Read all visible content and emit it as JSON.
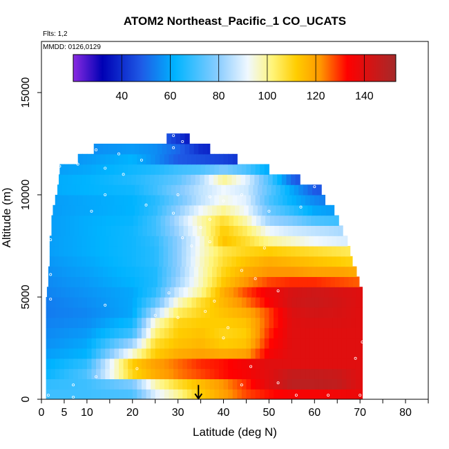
{
  "chart_data": {
    "type": "heatmap",
    "title": "ATOM2 Northeast_Pacific_1 CO_UCATS",
    "subtitle_flights": "Flts: 1,2",
    "subtitle_dates": "MMDD: 0126,0129",
    "xlabel": "Latitude (deg N)",
    "ylabel": "Altitude (m)",
    "xlim": [
      0,
      85
    ],
    "ylim": [
      0,
      17500
    ],
    "x_ticks": [
      0,
      5,
      10,
      20,
      30,
      40,
      50,
      60,
      70,
      80
    ],
    "x_tick_labels": [
      "0",
      "5",
      "10",
      "20",
      "30",
      "40",
      "50",
      "60",
      "70",
      "80"
    ],
    "y_ticks": [
      0,
      5000,
      10000,
      15000
    ],
    "y_tick_labels": [
      "0",
      "5000",
      "10000",
      "15000"
    ],
    "colorbar": {
      "range": [
        20,
        153
      ],
      "ticks": [
        40,
        60,
        80,
        100,
        120,
        140
      ],
      "tick_labels": [
        "40",
        "60",
        "80",
        "100",
        "120",
        "140"
      ],
      "stops": [
        {
          "v": 20,
          "c": "#8a2be2"
        },
        {
          "v": 32,
          "c": "#0000b4"
        },
        {
          "v": 48,
          "c": "#1e5ae6"
        },
        {
          "v": 62,
          "c": "#00b4ff"
        },
        {
          "v": 80,
          "c": "#8ccdff"
        },
        {
          "v": 92,
          "c": "#f0f8ff"
        },
        {
          "v": 102,
          "c": "#fff57a"
        },
        {
          "v": 112,
          "c": "#ffcd00"
        },
        {
          "v": 122,
          "c": "#ff9600"
        },
        {
          "v": 133,
          "c": "#ff0000"
        },
        {
          "v": 153,
          "c": "#a52a2a"
        }
      ]
    },
    "row_height_m": 500,
    "rows": [
      {
        "alt": 250,
        "lat_min": 1,
        "lat_max": 70.5
      },
      {
        "alt": 750,
        "lat_min": 1,
        "lat_max": 70.5
      },
      {
        "alt": 1250,
        "lat_min": 1,
        "lat_max": 70.5
      },
      {
        "alt": 1750,
        "lat_min": 1,
        "lat_max": 70.5
      },
      {
        "alt": 2250,
        "lat_min": 1,
        "lat_max": 70.5
      },
      {
        "alt": 2750,
        "lat_min": 1,
        "lat_max": 70.5
      },
      {
        "alt": 3250,
        "lat_min": 1,
        "lat_max": 70.5
      },
      {
        "alt": 3750,
        "lat_min": 1,
        "lat_max": 70.5
      },
      {
        "alt": 4250,
        "lat_min": 1,
        "lat_max": 70.5
      },
      {
        "alt": 4750,
        "lat_min": 1,
        "lat_max": 70.5
      },
      {
        "alt": 5250,
        "lat_min": 1.2,
        "lat_max": 70.5
      },
      {
        "alt": 5750,
        "lat_min": 1.5,
        "lat_max": 69.8
      },
      {
        "alt": 6250,
        "lat_min": 1.5,
        "lat_max": 69.2
      },
      {
        "alt": 6750,
        "lat_min": 1.8,
        "lat_max": 68.3
      },
      {
        "alt": 7250,
        "lat_min": 1.8,
        "lat_max": 67.8
      },
      {
        "alt": 7750,
        "lat_min": 1.8,
        "lat_max": 67.2
      },
      {
        "alt": 8250,
        "lat_min": 2.2,
        "lat_max": 66.2
      },
      {
        "alt": 8750,
        "lat_min": 2.2,
        "lat_max": 65.3
      },
      {
        "alt": 9250,
        "lat_min": 2.5,
        "lat_max": 64.3
      },
      {
        "alt": 9750,
        "lat_min": 3.0,
        "lat_max": 62.3
      },
      {
        "alt": 10250,
        "lat_min": 3.5,
        "lat_max": 61.5
      },
      {
        "alt": 10750,
        "lat_min": 3.8,
        "lat_max": 56.8
      },
      {
        "alt": 11250,
        "lat_min": 4.0,
        "lat_max": 50.0
      },
      {
        "alt": 11750,
        "lat_min": 8.0,
        "lat_max": 43.0
      },
      {
        "alt": 12250,
        "lat_min": 11.5,
        "lat_max": 37.0
      },
      {
        "alt": 12750,
        "lat_min": 27.5,
        "lat_max": 32.5
      }
    ],
    "value_field_notes": "Cell colour = CO mixing ratio interpolated over latitude; approximated by low-lat/high-lat anchor values per altitude band.",
    "anchor_grid": {
      "lats": [
        0,
        10,
        20,
        25,
        30,
        35,
        40,
        45,
        50,
        55,
        60,
        65,
        70
      ],
      "bands": [
        {
          "alt": 250,
          "v": [
            70,
            70,
            72,
            90,
            100,
            112,
            120,
            128,
            132,
            135,
            135,
            136,
            137
          ]
        },
        {
          "alt": 750,
          "v": [
            68,
            70,
            78,
            98,
            108,
            115,
            122,
            130,
            140,
            148,
            148,
            147,
            140
          ]
        },
        {
          "alt": 1250,
          "v": [
            62,
            72,
            110,
            118,
            124,
            128,
            132,
            135,
            140,
            146,
            146,
            145,
            140
          ]
        },
        {
          "alt": 1750,
          "v": [
            60,
            68,
            112,
            120,
            125,
            130,
            132,
            136,
            140,
            140,
            140,
            140,
            140
          ]
        },
        {
          "alt": 2250,
          "v": [
            58,
            62,
            95,
            112,
            118,
            120,
            118,
            120,
            135,
            140,
            140,
            140,
            140
          ]
        },
        {
          "alt": 2750,
          "v": [
            56,
            60,
            82,
            108,
            114,
            116,
            112,
            114,
            132,
            140,
            140,
            140,
            140
          ]
        },
        {
          "alt": 3250,
          "v": [
            55,
            58,
            70,
            102,
            112,
            114,
            110,
            112,
            130,
            140,
            140,
            140,
            140
          ]
        },
        {
          "alt": 3750,
          "v": [
            54,
            56,
            64,
            96,
            110,
            112,
            112,
            114,
            128,
            140,
            141,
            141,
            140
          ]
        },
        {
          "alt": 4250,
          "v": [
            53,
            55,
            60,
            84,
            104,
            110,
            114,
            118,
            128,
            141,
            143,
            142,
            140
          ]
        },
        {
          "alt": 4750,
          "v": [
            53,
            56,
            60,
            74,
            96,
            108,
            116,
            124,
            134,
            143,
            145,
            143,
            140
          ]
        },
        {
          "alt": 5250,
          "v": [
            54,
            57,
            60,
            68,
            88,
            100,
            118,
            128,
            136,
            142,
            144,
            142,
            140
          ]
        },
        {
          "alt": 5750,
          "v": [
            55,
            58,
            62,
            66,
            82,
            97,
            113,
            122,
            128,
            130,
            130,
            128,
            126
          ]
        },
        {
          "alt": 6250,
          "v": [
            56,
            59,
            63,
            66,
            80,
            96,
            110,
            118,
            122,
            122,
            120,
            120,
            118
          ]
        },
        {
          "alt": 6750,
          "v": [
            57,
            60,
            64,
            67,
            80,
            96,
            108,
            114,
            118,
            116,
            114,
            112,
            110
          ]
        },
        {
          "alt": 7250,
          "v": [
            58,
            61,
            64,
            67,
            80,
            95,
            106,
            110,
            112,
            110,
            108,
            106,
            104
          ]
        },
        {
          "alt": 7750,
          "v": [
            58,
            61,
            64,
            68,
            80,
            94,
            114,
            108,
            100,
            96,
            92,
            90,
            88
          ]
        },
        {
          "alt": 8250,
          "v": [
            58,
            61,
            64,
            70,
            82,
            96,
            112,
            104,
            92,
            88,
            86,
            84,
            82
          ]
        },
        {
          "alt": 8750,
          "v": [
            58,
            61,
            63,
            70,
            84,
            98,
            108,
            98,
            82,
            78,
            72,
            70,
            68
          ]
        },
        {
          "alt": 9250,
          "v": [
            58,
            60,
            62,
            68,
            80,
            92,
            100,
            92,
            76,
            68,
            60,
            58,
            56
          ]
        },
        {
          "alt": 9750,
          "v": [
            58,
            60,
            62,
            67,
            76,
            86,
            94,
            90,
            72,
            62,
            55,
            52,
            50
          ]
        },
        {
          "alt": 10250,
          "v": [
            60,
            62,
            64,
            70,
            78,
            86,
            92,
            88,
            74,
            60,
            48,
            45,
            44
          ]
        },
        {
          "alt": 10750,
          "v": [
            60,
            62,
            66,
            70,
            74,
            84,
            100,
            90,
            72,
            50,
            40,
            38,
            38
          ]
        },
        {
          "alt": 11250,
          "v": [
            58,
            60,
            64,
            66,
            70,
            72,
            78,
            72,
            60,
            44,
            38,
            36,
            36
          ]
        },
        {
          "alt": 11750,
          "v": [
            56,
            58,
            62,
            56,
            48,
            46,
            44,
            40,
            38,
            36,
            36,
            36,
            36
          ]
        },
        {
          "alt": 12250,
          "v": [
            55,
            56,
            58,
            56,
            50,
            40,
            36,
            34,
            34,
            34,
            34,
            34,
            34
          ]
        },
        {
          "alt": 12750,
          "v": [
            52,
            52,
            52,
            52,
            42,
            30,
            28,
            28,
            28,
            28,
            28,
            28,
            28
          ]
        }
      ]
    },
    "samples": [
      [
        1.5,
        200
      ],
      [
        7,
        100
      ],
      [
        7,
        700
      ],
      [
        12,
        1100
      ],
      [
        21,
        1500
      ],
      [
        44,
        700
      ],
      [
        46,
        1600
      ],
      [
        52,
        800
      ],
      [
        56,
        200
      ],
      [
        63,
        200
      ],
      [
        70,
        200
      ],
      [
        69,
        2000
      ],
      [
        70.5,
        2800
      ],
      [
        40,
        3000
      ],
      [
        41,
        3500
      ],
      [
        30,
        4000
      ],
      [
        38,
        4800
      ],
      [
        25,
        4100
      ],
      [
        14,
        4600
      ],
      [
        2,
        4900
      ],
      [
        28,
        5200
      ],
      [
        36,
        4300
      ],
      [
        52,
        5300
      ],
      [
        47,
        5900
      ],
      [
        44,
        6300
      ],
      [
        33,
        7500
      ],
      [
        37,
        7700
      ],
      [
        31,
        7900
      ],
      [
        49,
        7400
      ],
      [
        35,
        8400
      ],
      [
        37,
        8800
      ],
      [
        29,
        9100
      ],
      [
        40,
        9700
      ],
      [
        23,
        9500
      ],
      [
        11,
        9200
      ],
      [
        2,
        7800
      ],
      [
        2,
        6100
      ],
      [
        14,
        10000
      ],
      [
        30,
        10000
      ],
      [
        37,
        9900
      ],
      [
        44,
        10000
      ],
      [
        50,
        9200
      ],
      [
        57,
        9400
      ],
      [
        60,
        10400
      ],
      [
        4,
        11400
      ],
      [
        8,
        11500
      ],
      [
        14,
        11300
      ],
      [
        18,
        11000
      ],
      [
        12,
        12200
      ],
      [
        17,
        12000
      ],
      [
        22,
        11700
      ],
      [
        29,
        12900
      ],
      [
        31,
        12600
      ],
      [
        29,
        12300
      ]
    ],
    "marker": {
      "lat": 34.5,
      "alt_top": 700,
      "alt_bottom": 0
    }
  }
}
